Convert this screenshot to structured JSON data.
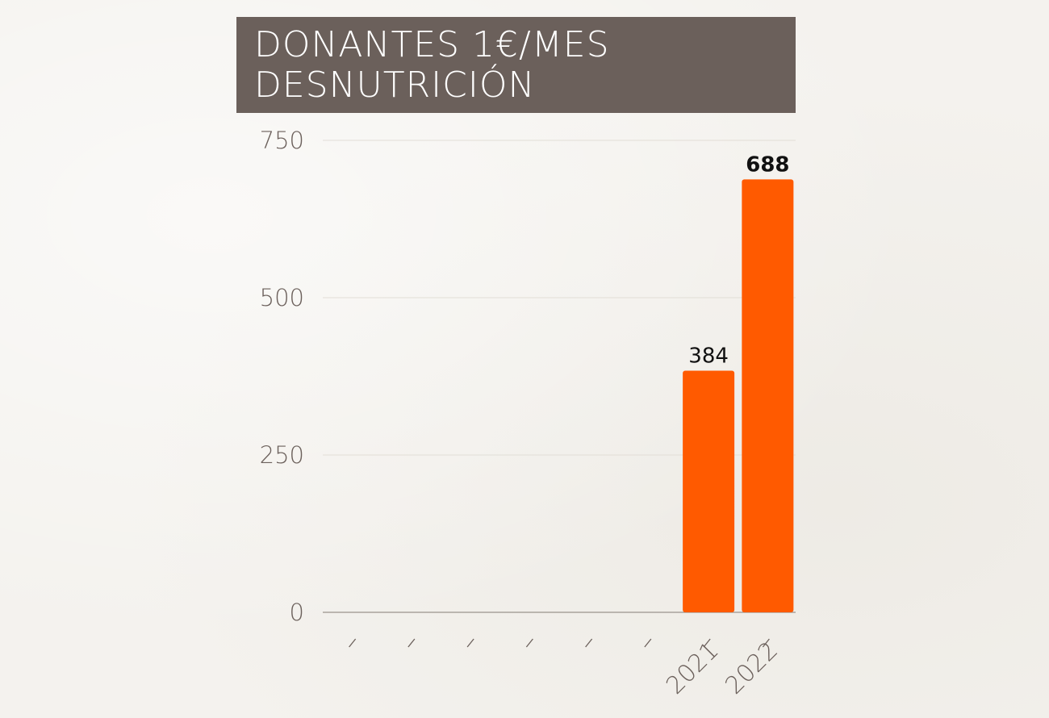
{
  "title": {
    "line1": "DONANTES 1€/MES",
    "line2": "DESNUTRICIÓN"
  },
  "chart_data": {
    "type": "bar",
    "title": "DONANTES 1€/MES DESNUTRICIÓN",
    "categories": [
      "",
      "",
      "",
      "",
      "",
      "",
      "2021",
      "2022"
    ],
    "values": [
      0,
      0,
      0,
      0,
      0,
      0,
      384,
      688
    ],
    "data_labels": [
      "",
      "",
      "",
      "",
      "",
      "",
      "384",
      "688"
    ],
    "ylim": [
      0,
      750
    ],
    "yticks": [
      "0",
      "250",
      "500",
      "750"
    ],
    "grid": true,
    "legend": "none",
    "bar_color": "#ff5a00",
    "axis_text_color": "#6b605b",
    "title_bg_color": "#6b605b"
  }
}
